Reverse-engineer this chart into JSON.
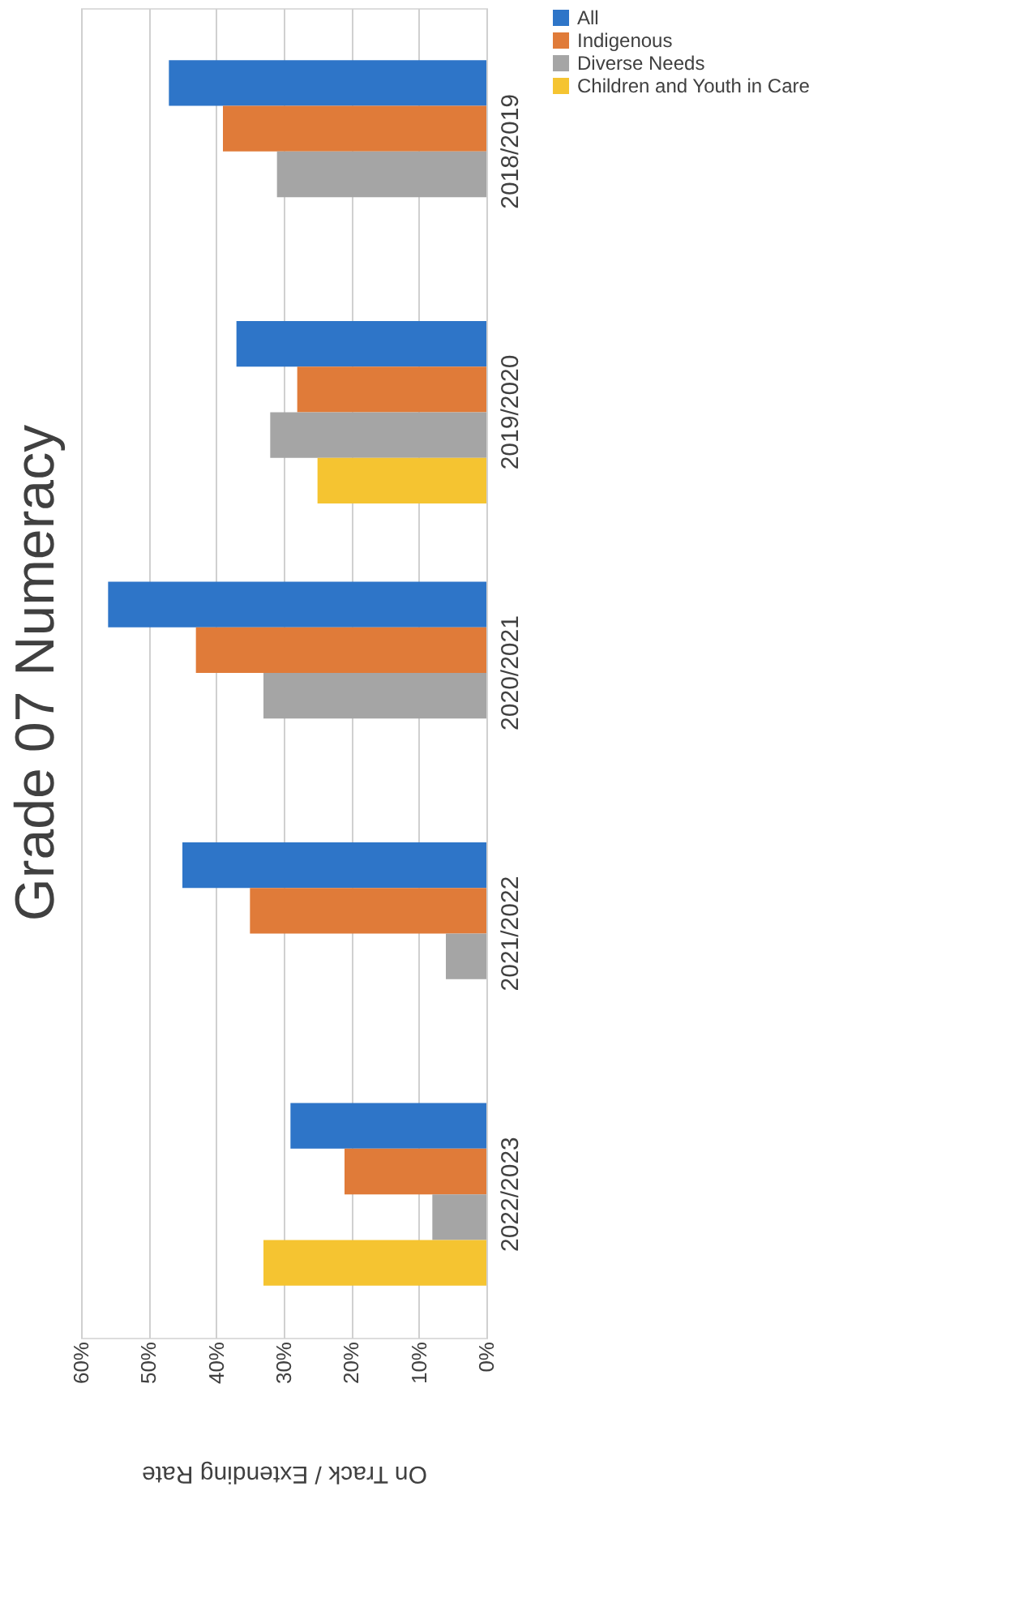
{
  "chart_data": {
    "type": "bar",
    "orientation": "horizontal",
    "title": "Grade 07 Numeracy",
    "xlabel": "On Track / Extending Rate",
    "categories": [
      "2018/2019",
      "2019/2020",
      "2020/2021",
      "2021/2022",
      "2022/2023"
    ],
    "series": [
      {
        "name": "All",
        "color": "#2e75c8",
        "values": [
          47,
          37,
          56,
          45,
          29
        ]
      },
      {
        "name": "Indigenous",
        "color": "#e07b39",
        "values": [
          39,
          28,
          43,
          35,
          21
        ]
      },
      {
        "name": "Diverse Needs",
        "color": "#a5a5a5",
        "values": [
          31,
          32,
          33,
          6,
          8
        ]
      },
      {
        "name": "Children and Youth in Care",
        "color": "#f5c431",
        "values": [
          null,
          25,
          null,
          null,
          33
        ]
      }
    ],
    "xlim": [
      60,
      0
    ],
    "xticks": [
      {
        "value": 60,
        "label": "60%"
      },
      {
        "value": 50,
        "label": "50%"
      },
      {
        "value": 40,
        "label": "40%"
      },
      {
        "value": 30,
        "label": "30%"
      },
      {
        "value": 20,
        "label": "20%"
      },
      {
        "value": 10,
        "label": "10%"
      },
      {
        "value": 0,
        "label": "0%"
      }
    ],
    "grid": "x",
    "legend": "right"
  }
}
